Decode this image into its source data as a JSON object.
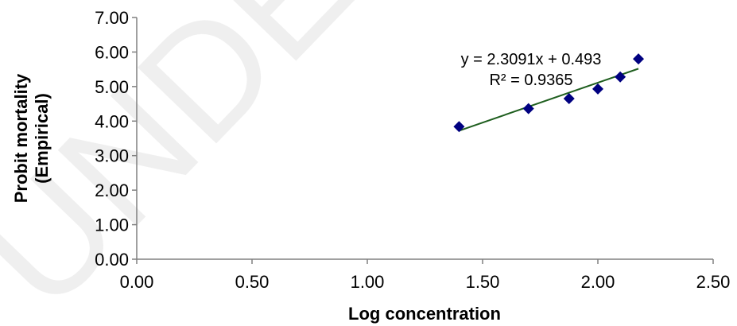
{
  "watermark": {
    "text": "UNDER PEER REVIEW",
    "color": "#b9b9b9"
  },
  "chart_data": {
    "type": "scatter",
    "title": "",
    "xlabel": "Log concentration",
    "ylabel_lines": [
      "Probit mortality",
      "(Empirical)"
    ],
    "xlim": [
      0,
      2.5
    ],
    "ylim": [
      0,
      7
    ],
    "x_ticks": [
      0,
      0.5,
      1,
      1.5,
      2,
      2.5
    ],
    "x_tick_labels": [
      "0.00",
      "0.50",
      "1.00",
      "1.50",
      "2.00",
      "2.50"
    ],
    "y_ticks": [
      0,
      1,
      2,
      3,
      4,
      5,
      6,
      7
    ],
    "y_tick_labels": [
      "0.00",
      "1.00",
      "2.00",
      "3.00",
      "4.00",
      "5.00",
      "6.00",
      "7.00"
    ],
    "grid": false,
    "legend": "none",
    "series": [
      {
        "x": [
          1.398,
          1.699,
          1.875,
          2.0,
          2.097,
          2.176
        ],
        "y": [
          3.84,
          4.36,
          4.65,
          4.93,
          5.28,
          5.8
        ],
        "marker": "diamond",
        "color": "#000080"
      }
    ],
    "trendline": {
      "type": "linear",
      "slope": 2.3091,
      "intercept": 0.493,
      "x_range": [
        1.398,
        2.176
      ],
      "color": "#1e5e1e",
      "equation_label": "y = 2.3091x + 0.493",
      "r2_label": "R² = 0.9365"
    }
  }
}
